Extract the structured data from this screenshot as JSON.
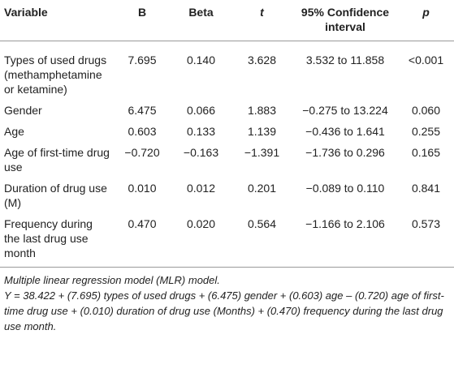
{
  "table": {
    "header": [
      "Variable",
      "B",
      "Beta",
      "t",
      "95% Confidence interval",
      "p"
    ],
    "rows": [
      [
        "Types of used drugs (methamphetamine or ketamine)",
        "7.695",
        "0.140",
        "3.628",
        "3.532 to 11.858",
        "<0.001"
      ],
      [
        "Gender",
        "6.475",
        "0.066",
        "1.883",
        "−0.275 to 13.224",
        "0.060"
      ],
      [
        "Age",
        "0.603",
        "0.133",
        "1.139",
        "−0.436 to 1.641",
        "0.255"
      ],
      [
        "Age of first-time drug use",
        "−0.720",
        "−0.163",
        "−1.391",
        "−1.736 to 0.296",
        "0.165"
      ],
      [
        "Duration of drug use (M)",
        "0.010",
        "0.012",
        "0.201",
        "−0.089 to 0.110",
        "0.841"
      ],
      [
        "Frequency during the last drug use month",
        "0.470",
        "0.020",
        "0.564",
        "−1.166 to 2.106",
        "0.573"
      ]
    ]
  },
  "footnotes": [
    "Multiple linear regression model (MLR) model.",
    "Y = 38.422 + (7.695) types of used drugs + (6.475) gender + (0.603) age – (0.720) age of first-time drug use + (0.010) duration of drug use (Months) + (0.470) frequency during the last drug use month."
  ]
}
